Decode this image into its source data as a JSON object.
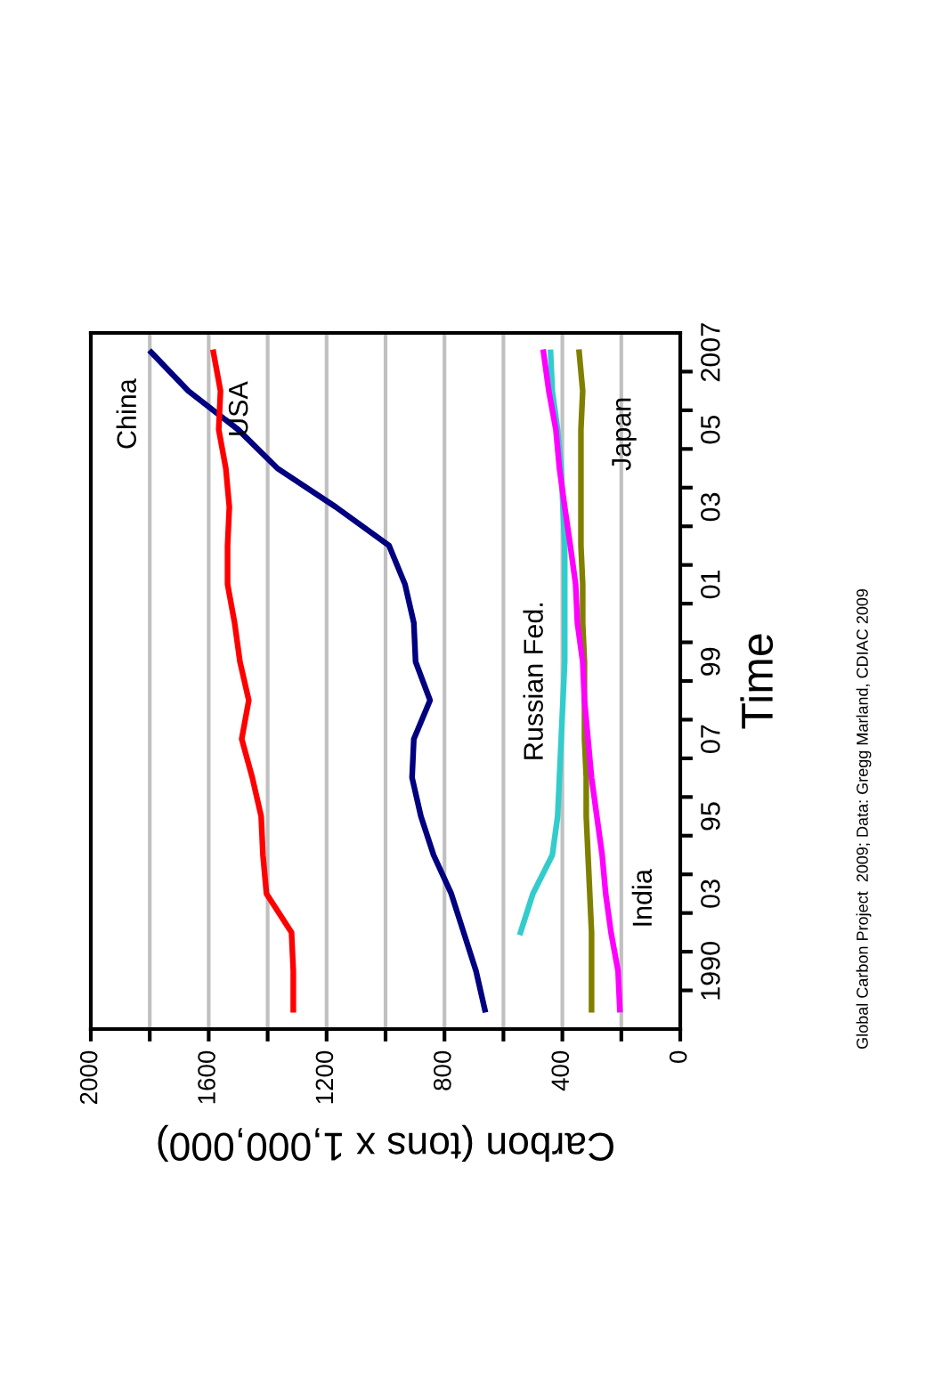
{
  "chart_data": {
    "type": "line",
    "orientation": "horizontal",
    "xlabel": "Carbon (tons x 1,000,000)",
    "ylabel": "Time",
    "categories": [
      "2007",
      null,
      "05",
      null,
      "03",
      null,
      "01",
      null,
      "99",
      null,
      "07",
      null,
      "95",
      null,
      "03",
      null,
      "1990",
      null
    ],
    "series": [
      {
        "name": "China",
        "color": "#000080",
        "values": [
          1795,
          1669,
          1500,
          1367,
          1169,
          988,
          934,
          904,
          898,
          849,
          904,
          910,
          880,
          837,
          777,
          735,
          693,
          663
        ]
      },
      {
        "name": "USA",
        "color": "#ff0000",
        "values": [
          1584,
          1560,
          1566,
          1542,
          1530,
          1536,
          1536,
          1512,
          1494,
          1464,
          1488,
          1452,
          1422,
          1416,
          1404,
          1319,
          1313,
          1313
        ]
      },
      {
        "name": "Russian Fed.",
        "color": "#33cccc",
        "values": [
          440,
          434,
          416,
          404,
          398,
          392,
          392,
          392,
          392,
          398,
          404,
          410,
          416,
          434,
          500,
          542,
          null,
          null
        ]
      },
      {
        "name": "Japan",
        "color": "#808000",
        "values": [
          343,
          331,
          337,
          337,
          337,
          337,
          331,
          331,
          325,
          325,
          325,
          319,
          319,
          313,
          307,
          301,
          301,
          301
        ]
      },
      {
        "name": "India",
        "color": "#ff00ff",
        "values": [
          464,
          446,
          422,
          410,
          392,
          373,
          355,
          349,
          331,
          325,
          313,
          301,
          283,
          265,
          253,
          235,
          211,
          205
        ]
      }
    ],
    "xlim": [
      2000,
      0
    ],
    "xticks": [
      2000,
      {
        "value": 1800,
        "label": null
      },
      1600,
      {
        "value": 1400,
        "label": null
      },
      1200,
      {
        "value": 1000,
        "label": null
      },
      800,
      {
        "value": 600,
        "label": null
      },
      400,
      {
        "value": 200,
        "label": null
      },
      0
    ],
    "grid": "x",
    "legend": false,
    "marker": "none",
    "line_style": "solid",
    "annotations": [
      "Global Carbon Project  2009; Data: Gregg Marland, CDIAC 2009"
    ]
  }
}
